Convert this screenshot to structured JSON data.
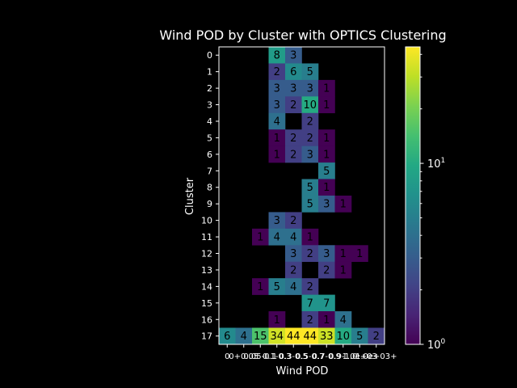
{
  "chart_data": {
    "type": "heatmap",
    "title": "Wind POD by Cluster with OPTICS Clustering",
    "xlabel": "Wind POD",
    "ylabel": "Cluster",
    "rows": [
      "0",
      "1",
      "2",
      "3",
      "4",
      "5",
      "6",
      "7",
      "8",
      "9",
      "10",
      "11",
      "12",
      "13",
      "14",
      "15",
      "16",
      "17"
    ],
    "x_tick_labels": [
      "0",
      "0+0.05",
      "0.05-0.1",
      "0.1-0.3",
      "0.3-0.5",
      "0.5-0.7",
      "0.7-0.9",
      "0.9-1.0",
      "1.0e+03",
      "1.0e+03+"
    ],
    "values": [
      [
        null,
        null,
        null,
        8,
        3,
        null,
        null,
        null,
        null,
        null
      ],
      [
        null,
        null,
        null,
        2,
        6,
        5,
        null,
        null,
        null,
        null
      ],
      [
        null,
        null,
        null,
        3,
        3,
        3,
        1,
        null,
        null,
        null
      ],
      [
        null,
        null,
        null,
        3,
        2,
        10,
        1,
        null,
        null,
        null
      ],
      [
        null,
        null,
        null,
        4,
        null,
        2,
        null,
        null,
        null,
        null
      ],
      [
        null,
        null,
        null,
        1,
        2,
        2,
        1,
        null,
        null,
        null
      ],
      [
        null,
        null,
        null,
        1,
        2,
        3,
        1,
        null,
        null,
        null
      ],
      [
        null,
        null,
        null,
        null,
        null,
        null,
        5,
        null,
        null,
        null
      ],
      [
        null,
        null,
        null,
        null,
        null,
        5,
        1,
        null,
        null,
        null
      ],
      [
        null,
        null,
        null,
        null,
        null,
        5,
        3,
        1,
        null,
        null
      ],
      [
        null,
        null,
        null,
        3,
        2,
        null,
        null,
        null,
        null,
        null
      ],
      [
        null,
        null,
        1,
        4,
        4,
        1,
        null,
        null,
        null,
        null
      ],
      [
        null,
        null,
        null,
        null,
        3,
        2,
        3,
        1,
        1,
        null
      ],
      [
        null,
        null,
        null,
        null,
        2,
        null,
        2,
        1,
        null,
        null
      ],
      [
        null,
        null,
        1,
        5,
        4,
        2,
        null,
        null,
        null,
        null
      ],
      [
        null,
        null,
        null,
        null,
        null,
        7,
        7,
        null,
        null,
        null
      ],
      [
        null,
        null,
        null,
        1,
        null,
        2,
        1,
        4,
        null,
        null
      ],
      [
        6,
        4,
        15,
        34,
        44,
        44,
        33,
        10,
        5,
        2
      ]
    ],
    "colorbar": {
      "scale": "log",
      "min": 1,
      "max": 44,
      "colormap": "viridis",
      "tick_labels": [
        {
          "base": "10",
          "exp": "0",
          "value": 1
        },
        {
          "base": "10",
          "exp": "1",
          "value": 10
        }
      ]
    }
  }
}
